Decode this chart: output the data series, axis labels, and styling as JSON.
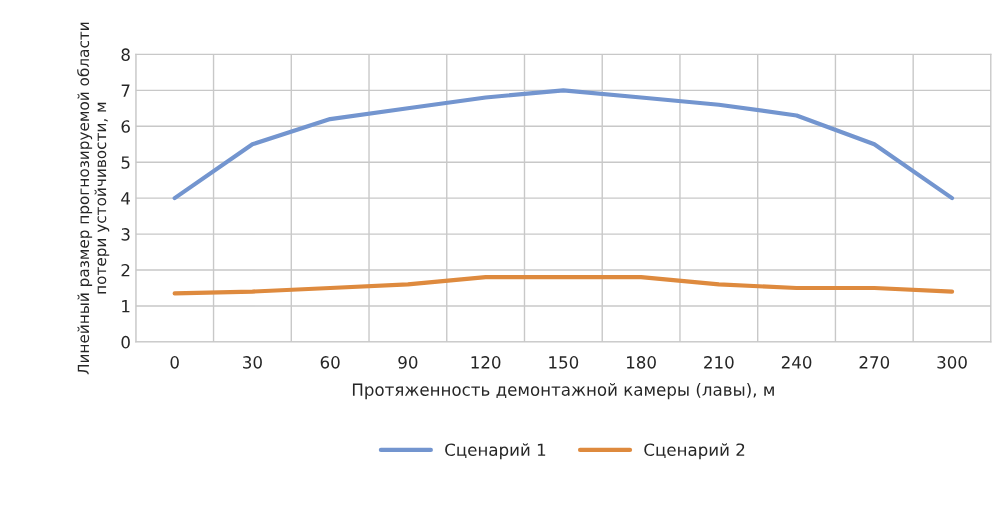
{
  "chart_data": {
    "type": "line",
    "xlabel": "Протяженность демонтажной камеры (лавы), м",
    "ylabel": "Линейный размер прогнозируемой области потери устойчивости, м",
    "categories": [
      "0",
      "30",
      "60",
      "90",
      "120",
      "150",
      "180",
      "210",
      "240",
      "270",
      "300"
    ],
    "series": [
      {
        "name": "Сценарий 1",
        "color": "#7395cf",
        "values": [
          4.0,
          5.5,
          6.2,
          6.5,
          6.8,
          7.0,
          6.8,
          6.6,
          6.3,
          5.5,
          4.0
        ]
      },
      {
        "name": "Сценарий 2",
        "color": "#de8a3e",
        "values": [
          1.35,
          1.4,
          1.5,
          1.6,
          1.8,
          1.8,
          1.8,
          1.6,
          1.5,
          1.5,
          1.4
        ]
      }
    ],
    "ylim": [
      0,
      8
    ],
    "yticks": [
      0,
      1,
      2,
      3,
      4,
      5,
      6,
      7,
      8
    ],
    "grid": true,
    "legend": "bottom"
  }
}
